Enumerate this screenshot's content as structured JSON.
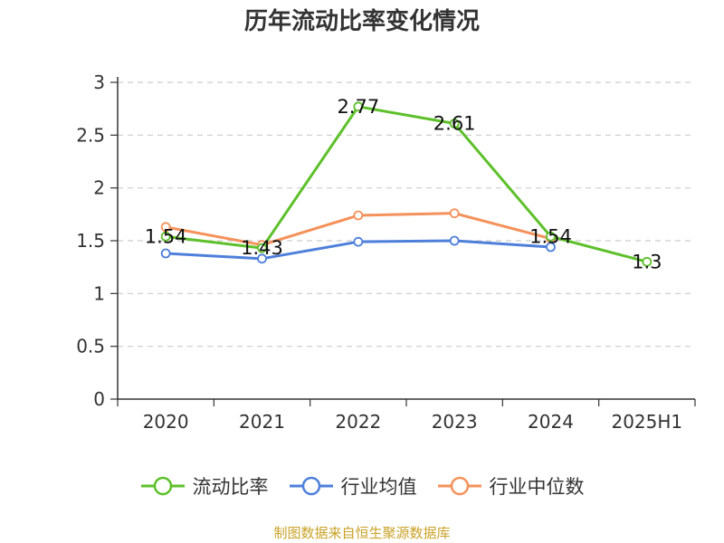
{
  "chart_data": {
    "type": "line",
    "title": "历年流动比率变化情况",
    "categories": [
      "2020",
      "2021",
      "2022",
      "2023",
      "2024",
      "2025H1"
    ],
    "ylim": [
      0,
      3
    ],
    "yticks": [
      "0",
      "0.5",
      "1",
      "1.5",
      "2",
      "2.5",
      "3"
    ],
    "grid": "horizontal-dashed",
    "legend_position": "bottom",
    "series": [
      {
        "name": "流动比率",
        "color": "#5dc02a",
        "values": [
          1.54,
          1.43,
          2.77,
          2.61,
          1.54,
          1.3
        ],
        "labels": [
          "1.54",
          "1.43",
          "2.77",
          "2.61",
          "1.54",
          "1.3"
        ]
      },
      {
        "name": "行业均值",
        "color": "#4e7fdb",
        "values": [
          1.38,
          1.33,
          1.49,
          1.5,
          1.44,
          null
        ]
      },
      {
        "name": "行业中位数",
        "color": "#f5915a",
        "values": [
          1.63,
          1.46,
          1.74,
          1.76,
          1.52,
          null
        ]
      }
    ]
  },
  "source_note": "制图数据来自恒生聚源数据库"
}
